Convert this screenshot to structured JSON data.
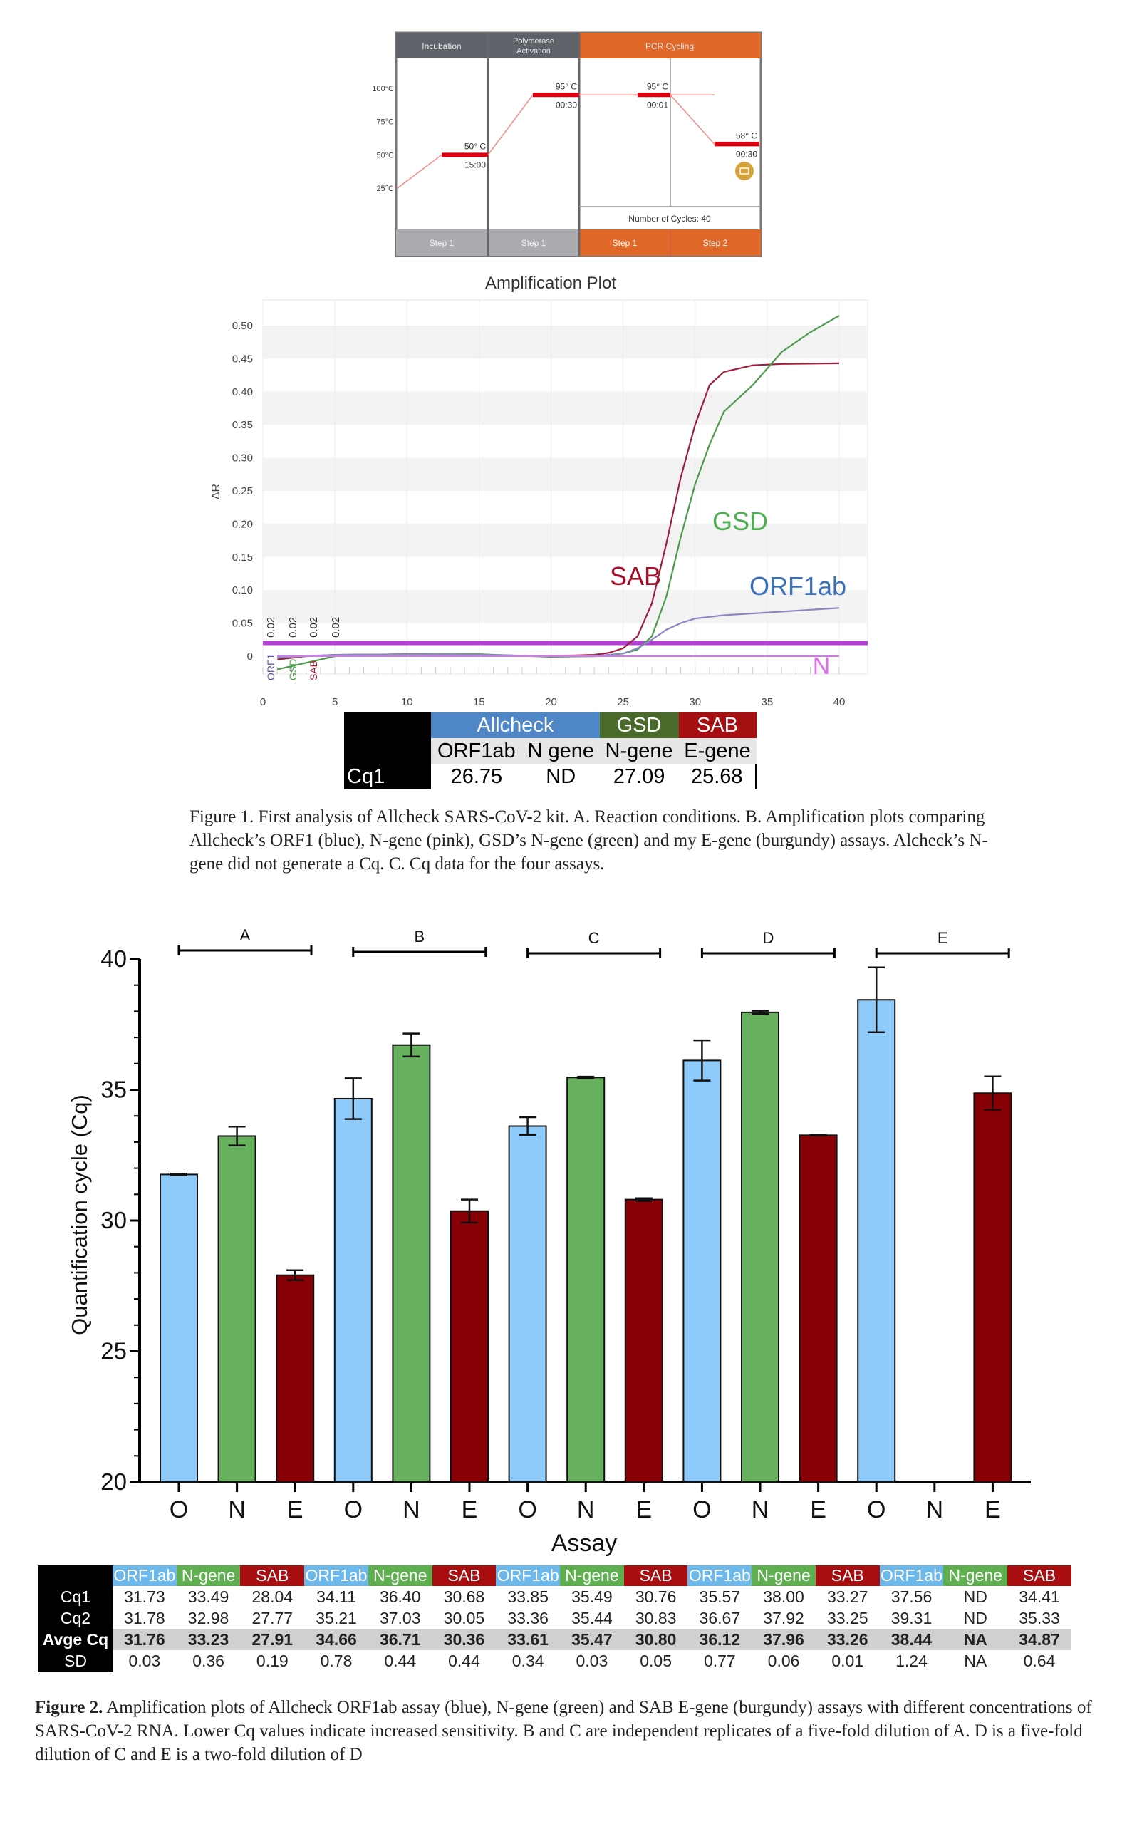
{
  "reaction_conditions": {
    "stages": [
      {
        "label": "Incubation",
        "step": "Step 1",
        "temp": "50° C",
        "time": "15:00"
      },
      {
        "label": "Polymerase Activation",
        "step": "Step 1",
        "temp": "95° C",
        "time": "00:30"
      },
      {
        "label": "PCR Cycling",
        "steps": [
          {
            "step": "Step 1",
            "temp": "95° C",
            "time": "00:01"
          },
          {
            "step": "Step 2",
            "temp": "58° C",
            "time": "00:30"
          }
        ]
      }
    ],
    "y_ticks": [
      "100°C",
      "75°C",
      "50°C",
      "25°C"
    ],
    "cycles_label": "Number of Cycles:",
    "cycles_value": "40",
    "icon": "camera-icon",
    "colors": {
      "gray_header": "#5f6268",
      "orange": "#e0692a",
      "hold": "#e00010"
    }
  },
  "chart_data": [
    {
      "type": "line",
      "title": "Amplification Plot",
      "xlabel": "",
      "ylabel": "ΔR",
      "xlim": [
        0,
        40
      ],
      "ylim": [
        -0.04,
        0.52
      ],
      "x_ticks": [
        0,
        5,
        10,
        15,
        20,
        25,
        30,
        35,
        40
      ],
      "y_ticks": [
        "0",
        "0.05",
        "0.10",
        "0.15",
        "0.20",
        "0.25",
        "0.30",
        "0.35",
        "0.40",
        "0.45",
        "0.50"
      ],
      "threshold": 0.02,
      "threshold_labels": [
        "0.02",
        "0.02",
        "0.02",
        "0.02"
      ],
      "marker_labels": [
        "ORF1",
        "GSD",
        "SAB"
      ],
      "series": [
        {
          "name": "SAB",
          "color": "#a01f3c",
          "label_color": "#a5112a",
          "x": [
            1,
            3,
            5,
            10,
            15,
            20,
            23,
            24,
            25,
            26,
            27,
            28,
            29,
            30,
            31,
            32,
            34,
            36,
            40
          ],
          "y": [
            -0.005,
            0.0,
            0.002,
            0.003,
            0.002,
            0.0,
            0.002,
            0.005,
            0.012,
            0.03,
            0.08,
            0.17,
            0.27,
            0.35,
            0.41,
            0.43,
            0.44,
            0.442,
            0.443
          ]
        },
        {
          "name": "GSD",
          "color": "#4c9a4c",
          "label_color": "#4caf50",
          "x": [
            1,
            3,
            5,
            10,
            15,
            20,
            23,
            25,
            26,
            27,
            28,
            29,
            30,
            31,
            32,
            34,
            36,
            38,
            40
          ],
          "y": [
            -0.02,
            -0.01,
            0.0,
            0.003,
            0.003,
            -0.001,
            0.0,
            0.004,
            0.01,
            0.03,
            0.09,
            0.18,
            0.26,
            0.32,
            0.37,
            0.41,
            0.46,
            0.49,
            0.515
          ]
        },
        {
          "name": "ORF1ab",
          "color": "#8a88c0",
          "label_color": "#3a6fb5",
          "x": [
            1,
            3,
            5,
            10,
            15,
            20,
            23,
            25,
            26,
            27,
            28,
            29,
            30,
            32,
            35,
            40
          ],
          "y": [
            -0.002,
            0.0,
            0.002,
            0.003,
            0.002,
            0.0,
            0.0,
            0.004,
            0.012,
            0.025,
            0.04,
            0.05,
            0.057,
            0.062,
            0.066,
            0.073
          ]
        },
        {
          "name": "N",
          "color": "#c77fe0",
          "label_color": "#e070f0",
          "x": [
            1,
            40
          ],
          "y": [
            0.0,
            0.0
          ]
        }
      ]
    },
    {
      "type": "bar",
      "xlabel": "Assay",
      "ylabel": "Quantification cycle (Cq)",
      "ylim": [
        20,
        40
      ],
      "y_ticks": [
        20,
        25,
        30,
        35,
        40
      ],
      "groups": [
        "A",
        "B",
        "C",
        "D",
        "E"
      ],
      "categories": [
        "O",
        "N",
        "E"
      ],
      "colors": {
        "O": "#8ecbfa",
        "N": "#66b05e",
        "E": "#860006"
      },
      "series": [
        {
          "group": "A",
          "values": [
            31.76,
            33.23,
            27.91
          ],
          "errors": [
            0.03,
            0.36,
            0.19
          ]
        },
        {
          "group": "B",
          "values": [
            34.66,
            36.71,
            30.36
          ],
          "errors": [
            0.78,
            0.44,
            0.44
          ]
        },
        {
          "group": "C",
          "values": [
            33.61,
            35.47,
            30.8
          ],
          "errors": [
            0.34,
            0.03,
            0.05
          ]
        },
        {
          "group": "D",
          "values": [
            36.12,
            37.96,
            33.26
          ],
          "errors": [
            0.77,
            0.06,
            0.01
          ]
        },
        {
          "group": "E",
          "values": [
            38.44,
            null,
            34.87
          ],
          "errors": [
            1.24,
            null,
            0.64
          ]
        }
      ]
    }
  ],
  "cq1_table": {
    "groups": [
      {
        "label": "Allcheck",
        "color": "#4f86c6"
      },
      {
        "label": "GSD",
        "color": "#4a6a2c"
      },
      {
        "label": "SAB",
        "color": "#a50f12"
      }
    ],
    "subheaders": [
      "ORF1ab",
      "N gene",
      "N-gene",
      "E-gene"
    ],
    "row_label": "Cq1",
    "values": [
      "26.75",
      "ND",
      "27.09",
      "25.68"
    ]
  },
  "figure1_caption": "Figure 1. First analysis of Allcheck SARS-CoV-2 kit. A. Reaction conditions. B. Amplification plots comparing Allcheck’s ORF1 (blue), N-gene (pink), GSD’s N-gene (green) and my E-gene (burgundy) assays. Alcheck’s N-gene did not generate a Cq. C. Cq data for the four assays.",
  "cq_table": {
    "header_colors": {
      "ORF1ab": "#6cb8ea",
      "N-gene": "#5fae4f",
      "SAB": "#a80d10"
    },
    "headers": [
      "ORF1ab",
      "N-gene",
      "SAB",
      "ORF1ab",
      "N-gene",
      "SAB",
      "ORF1ab",
      "N-gene",
      "SAB",
      "ORF1ab",
      "N-gene",
      "SAB",
      "ORF1ab",
      "N-gene",
      "SAB"
    ],
    "rows": [
      {
        "label": "Cq1",
        "values": [
          "31.73",
          "33.49",
          "28.04",
          "34.11",
          "36.40",
          "30.68",
          "33.85",
          "35.49",
          "30.76",
          "35.57",
          "38.00",
          "33.27",
          "37.56",
          "ND",
          "34.41"
        ]
      },
      {
        "label": "Cq2",
        "values": [
          "31.78",
          "32.98",
          "27.77",
          "35.21",
          "37.03",
          "30.05",
          "33.36",
          "35.44",
          "30.83",
          "36.67",
          "37.92",
          "33.25",
          "39.31",
          "ND",
          "35.33"
        ]
      },
      {
        "label": "Avge Cq",
        "values": [
          "31.76",
          "33.23",
          "27.91",
          "34.66",
          "36.71",
          "30.36",
          "33.61",
          "35.47",
          "30.80",
          "36.12",
          "37.96",
          "33.26",
          "38.44",
          "NA",
          "34.87"
        ]
      },
      {
        "label": "SD",
        "values": [
          "0.03",
          "0.36",
          "0.19",
          "0.78",
          "0.44",
          "0.44",
          "0.34",
          "0.03",
          "0.05",
          "0.77",
          "0.06",
          "0.01",
          "1.24",
          "NA",
          "0.64"
        ]
      }
    ]
  },
  "figure2_caption": {
    "lead": "Figure 2.",
    "text": " Amplification plots of Allcheck ORF1ab assay (blue), N-gene (green) and SAB E-gene (burgundy) assays with different concentrations of SARS-CoV-2 RNA. Lower Cq values indicate increased sensitivity. B and C are independent replicates of a five-fold dilution of A. D is a five-fold dilution of C and E is a two-fold dilution of D"
  }
}
